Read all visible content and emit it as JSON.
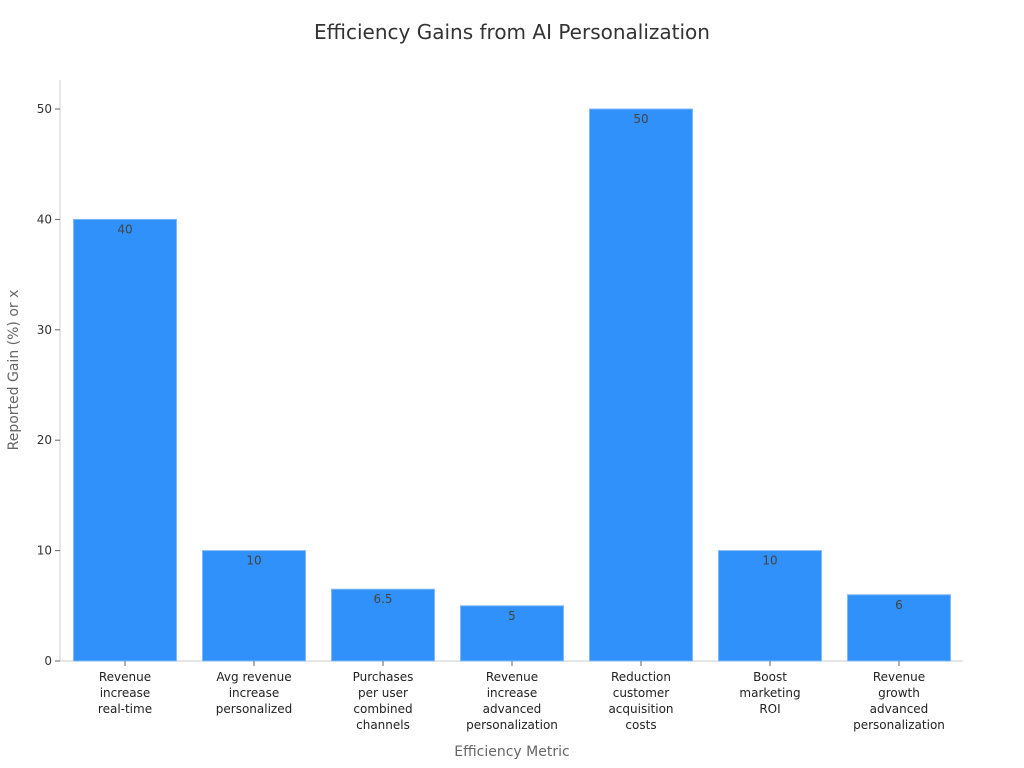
{
  "chart_data": {
    "type": "bar",
    "title": "Efficiency Gains from AI Personalization",
    "xlabel": "Efficiency Metric",
    "ylabel": "Reported Gain (%) or x",
    "categories": [
      "Revenue\nincrease\nreal-time",
      "Avg revenue\nincrease\npersonalized",
      "Purchases\nper user\ncombined\nchannels",
      "Revenue\nincrease\nadvanced\npersonalization",
      "Reduction\ncustomer\nacquisition\ncosts",
      "Boost\nmarketing\nROI",
      "Revenue\ngrowth\nadvanced\npersonalization"
    ],
    "values": [
      40,
      10,
      6.5,
      5,
      50,
      10,
      6
    ],
    "data_labels": [
      "40",
      "10",
      "6.5",
      "5",
      "50",
      "10",
      "6"
    ],
    "yticks": [
      0,
      10,
      20,
      30,
      40,
      50
    ],
    "ylim": [
      0,
      52.5
    ],
    "grid": false,
    "bar_color": "#2f91f9"
  }
}
